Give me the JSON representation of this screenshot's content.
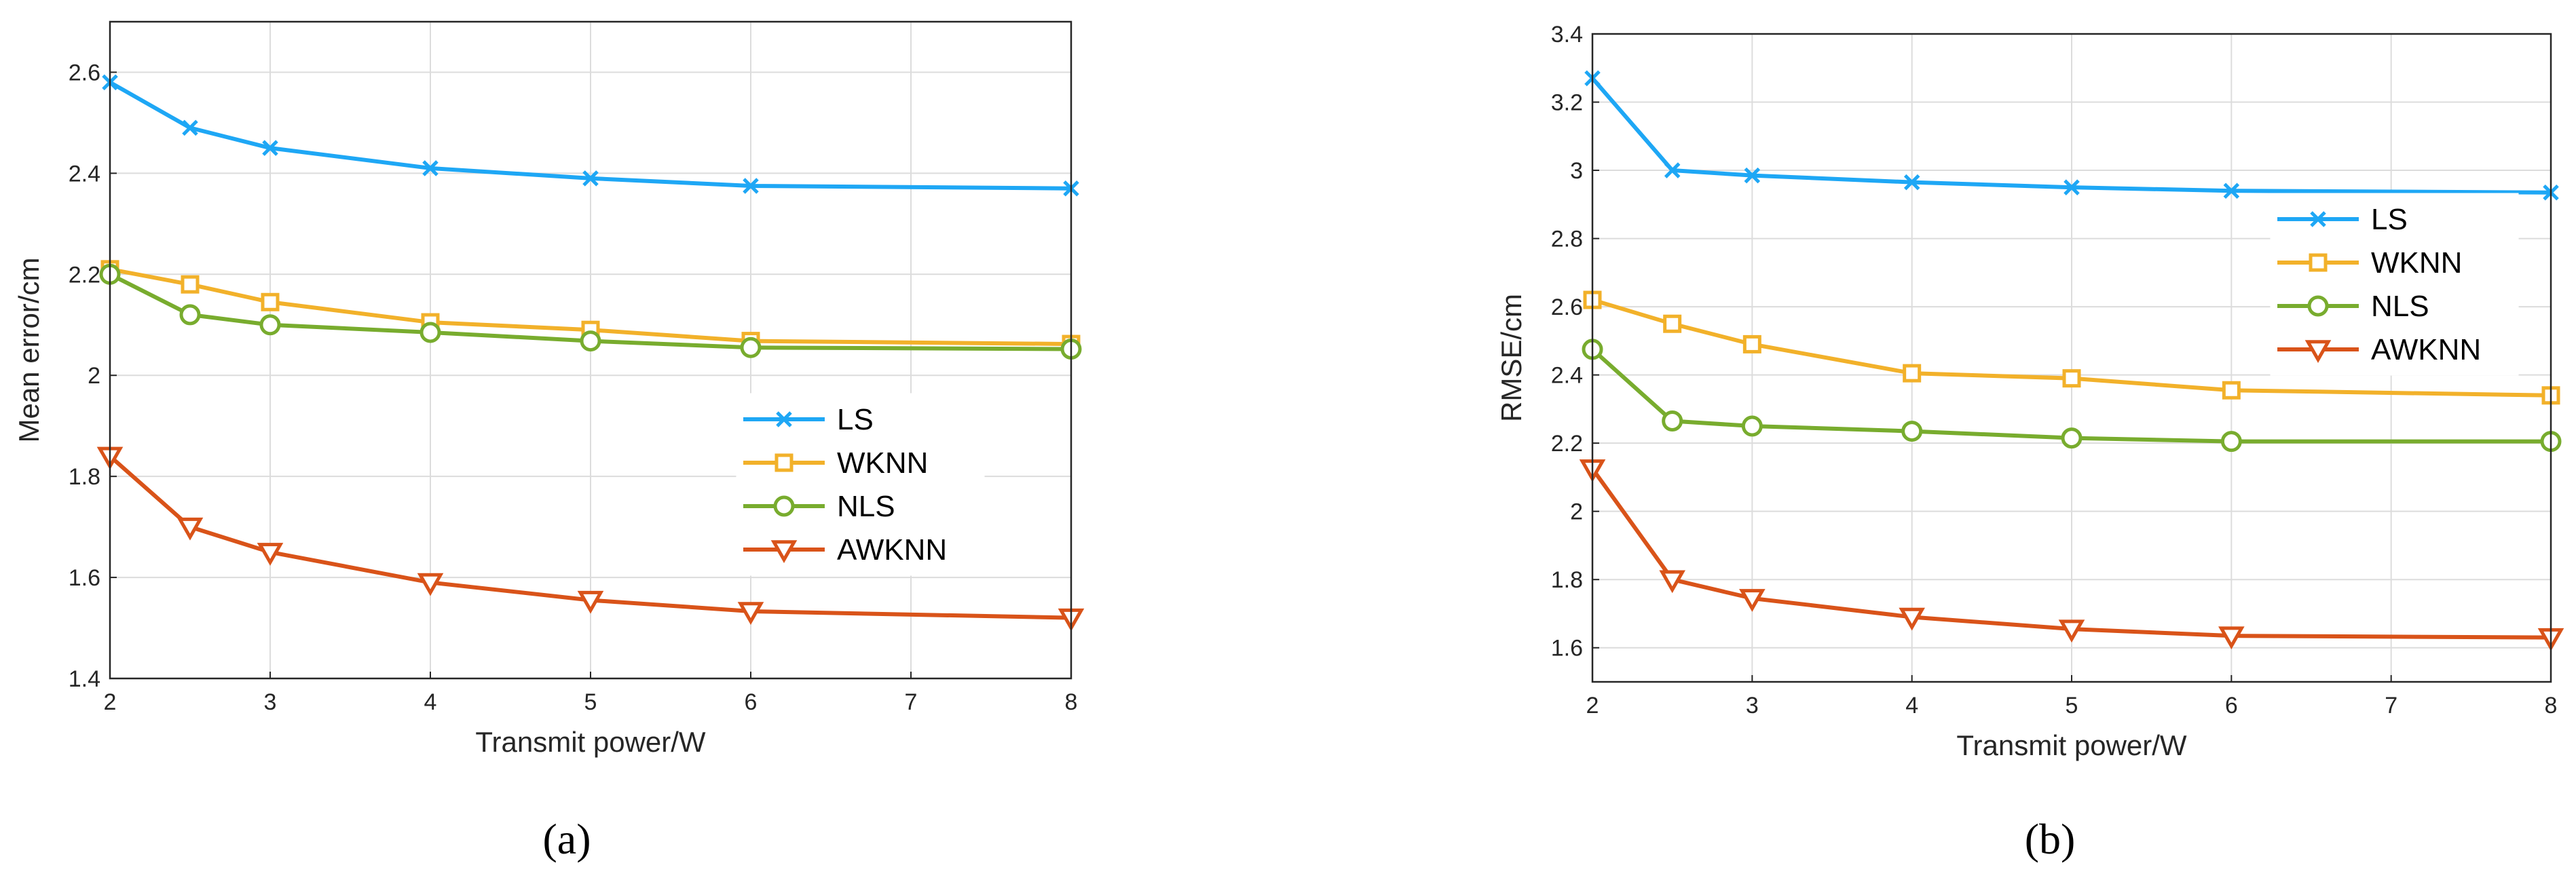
{
  "colors": {
    "LS": "#1ea7f5",
    "WKNN": "#f2b12a",
    "NLS": "#78ac2e",
    "AWKNN": "#d95319"
  },
  "markers": {
    "LS": "x",
    "WKNN": "square",
    "NLS": "circle",
    "AWKNN": "triangle-down"
  },
  "chart_data": [
    {
      "panel_label": "(a)",
      "type": "line",
      "xlabel": "Transmit power/W",
      "ylabel": "Mean error/cm",
      "xlim": [
        2,
        8
      ],
      "ylim": [
        1.4,
        2.7
      ],
      "xticks": [
        "2",
        "3",
        "4",
        "5",
        "6",
        "7",
        "8"
      ],
      "yticks": [
        "1.4",
        "1.6",
        "1.8",
        "2",
        "2.2",
        "2.4",
        "2.6"
      ],
      "grid": true,
      "legend_position": "right",
      "x": [
        2,
        2.5,
        3,
        4,
        5,
        6,
        8
      ],
      "series": [
        {
          "name": "LS",
          "values": [
            2.58,
            2.49,
            2.45,
            2.41,
            2.39,
            2.375,
            2.37
          ]
        },
        {
          "name": "WKNN",
          "values": [
            2.21,
            2.18,
            2.145,
            2.105,
            2.09,
            2.068,
            2.062
          ]
        },
        {
          "name": "NLS",
          "values": [
            2.2,
            2.12,
            2.1,
            2.085,
            2.068,
            2.055,
            2.052
          ]
        },
        {
          "name": "AWKNN",
          "values": [
            1.84,
            1.7,
            1.65,
            1.59,
            1.555,
            1.533,
            1.52
          ]
        }
      ]
    },
    {
      "panel_label": "(b)",
      "type": "line",
      "xlabel": "Transmit power/W",
      "ylabel": "RMSE/cm",
      "xlim": [
        2,
        8
      ],
      "ylim": [
        1.5,
        3.4
      ],
      "xticks": [
        "2",
        "3",
        "4",
        "5",
        "6",
        "7",
        "8"
      ],
      "yticks": [
        "1.6",
        "1.8",
        "2",
        "2.2",
        "2.4",
        "2.6",
        "2.8",
        "3",
        "3.2",
        "3.4"
      ],
      "grid": true,
      "legend_position": "top-right",
      "x": [
        2,
        2.5,
        3,
        4,
        5,
        6,
        8
      ],
      "series": [
        {
          "name": "LS",
          "values": [
            3.27,
            3.0,
            2.985,
            2.965,
            2.95,
            2.94,
            2.935
          ]
        },
        {
          "name": "WKNN",
          "values": [
            2.62,
            2.55,
            2.49,
            2.405,
            2.39,
            2.355,
            2.34
          ]
        },
        {
          "name": "NLS",
          "values": [
            2.475,
            2.265,
            2.25,
            2.235,
            2.215,
            2.205,
            2.205
          ]
        },
        {
          "name": "AWKNN",
          "values": [
            2.125,
            1.8,
            1.745,
            1.69,
            1.655,
            1.635,
            1.63
          ]
        }
      ]
    }
  ]
}
